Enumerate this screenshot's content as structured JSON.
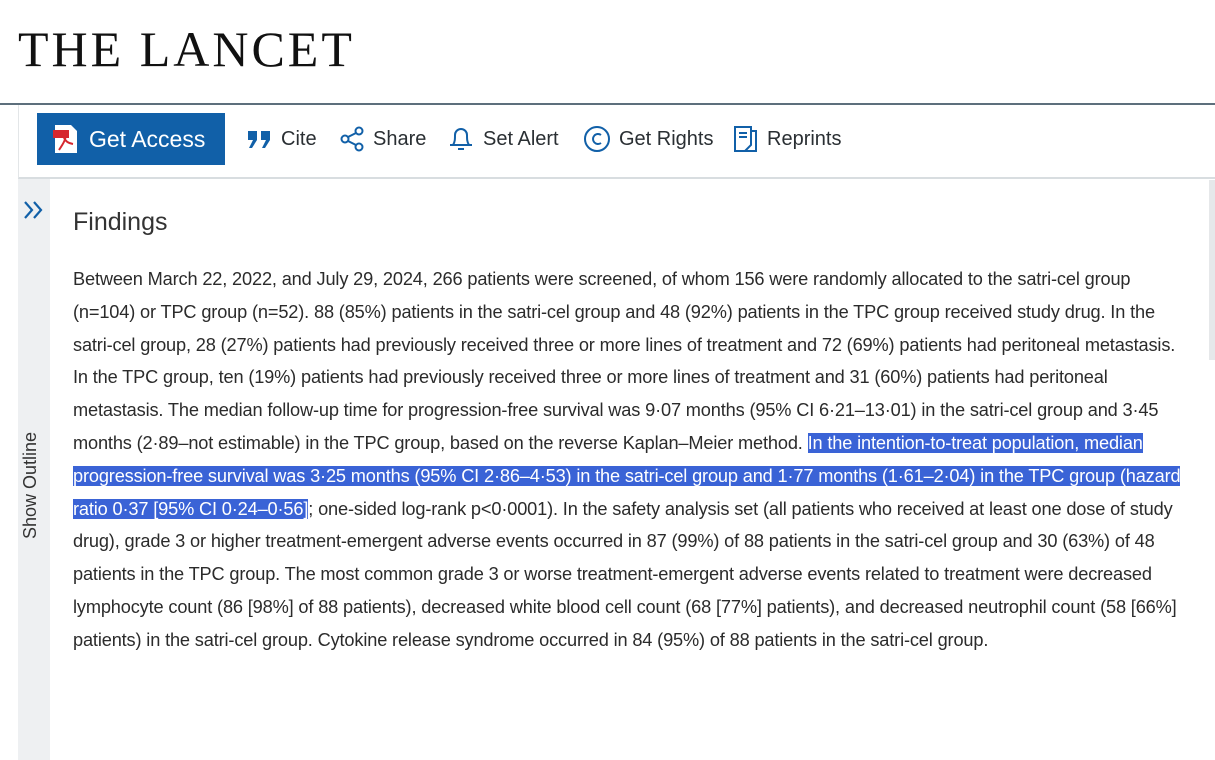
{
  "header": {
    "logo": "THE LANCET"
  },
  "toolbar": {
    "items": [
      "Get Access",
      "Cite",
      "Share",
      "Set Alert",
      "Get Rights",
      "Reprints"
    ]
  },
  "sidebar": {
    "label": "Show Outline"
  },
  "section": {
    "heading": "Findings",
    "paragraph": [
      "Between March 22, 2022, and July 29, 2024, 266 patients were screened, of whom 156 were randomly allocated to the satri-cel group (n=104) or TPC group (n=52). 88 (85%) patients in the satri-cel group and 48 (92%) patients in the TPC group received study drug. In the satri-cel group, 28 (27%) patients had previously received three or more lines of treatment and 72 (69%) patients had peritoneal metastasis. In the TPC group, ten (19%) patients had previously received three or more lines of treatment and 31 (60%) patients had peritoneal metastasis. The median follow-up time for progression-free survival was 9·07 months (95% CI 6·21–13·01) in the satri-cel group and 3·45 months (2·89–not estimable) in the TPC group, based on the reverse Kaplan–Meier method.",
      "In the intention-to-treat population, median progression-free survival was 3·25 months (95% CI 2·86–4·53) in the satri-cel group and 1·77 months (1·61–2·04) in the TPC group (hazard ratio 0·37 [95% CI 0·24–0·56]",
      "; one-sided log-rank p<0·0001). In the safety analysis set (all patients who received at least one dose of study drug), grade 3 or higher treatment-emergent adverse events occurred in 87 (99%) of 88 patients in the satri-cel group and 30 (63%) of 48 patients in the TPC group. The most common grade 3 or worse treatment-emergent adverse events related to treatment were decreased lymphocyte count (86 [98%] of 88 patients), decreased white blood cell count (68 [77%] patients), and decreased neutrophil count (58 [66%] patients) in the satri-cel group. Cytokine release syndrome occurred in 84 (95%) of 88 patients in the satri-cel group."
    ]
  }
}
